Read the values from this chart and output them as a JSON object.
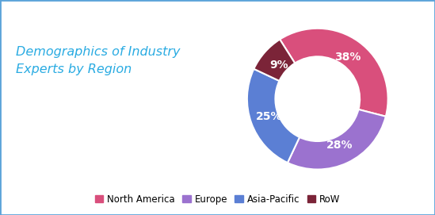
{
  "title": "Demographics of Industry\nExperts by Region",
  "title_color": "#29ABE2",
  "title_fontsize": 11.5,
  "labels": [
    "North America",
    "Europe",
    "Asia-Pacific",
    "RoW"
  ],
  "values": [
    38,
    28,
    25,
    9
  ],
  "colors": [
    "#D94F7C",
    "#9B72CF",
    "#5B7FD4",
    "#7B2438"
  ],
  "pct_labels": [
    "38%",
    "28%",
    "25%",
    "9%"
  ],
  "pct_label_color": "#ffffff",
  "pct_fontsize": 10,
  "background_color": "#ffffff",
  "border_color": "#5BA3D9",
  "donut_width": 0.4,
  "legend_fontsize": 8.5,
  "startangle": 122.4
}
